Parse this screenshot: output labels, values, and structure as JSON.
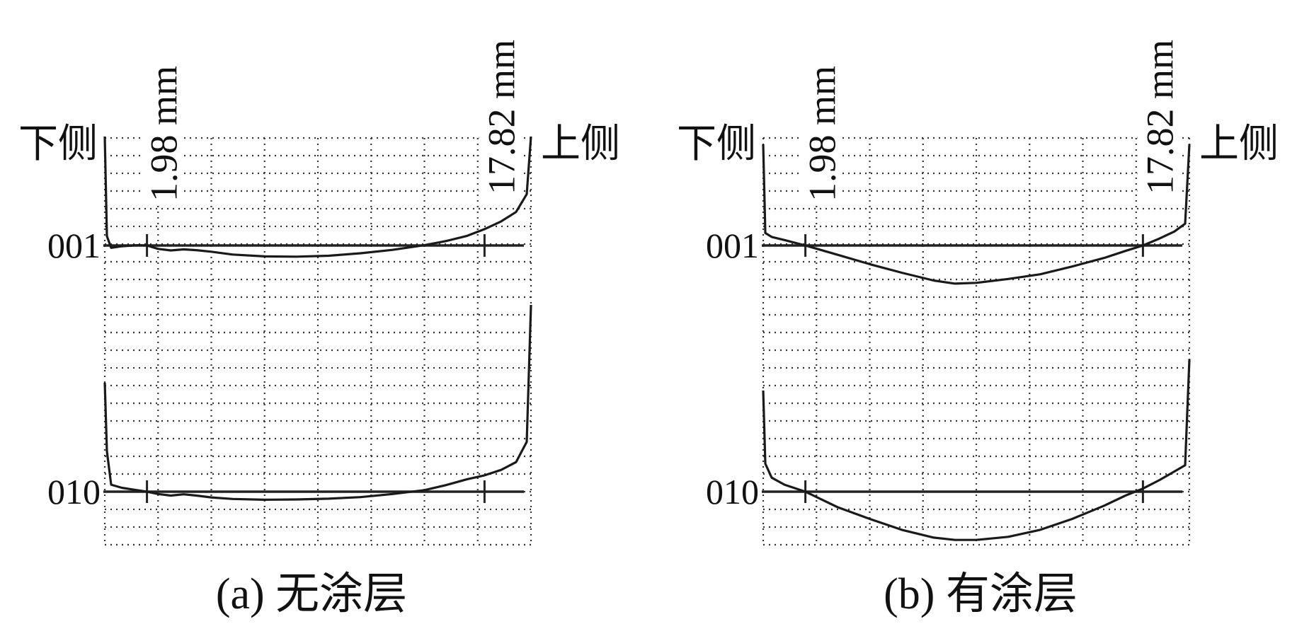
{
  "panels": [
    {
      "caption": "(a)  无涂层",
      "left_label": "下侧",
      "right_label": "上侧",
      "marker_left_label": "1.98 mm",
      "marker_right_label": "17.82 mm",
      "row_labels": [
        "001",
        "010"
      ]
    },
    {
      "caption": "(b)  有涂层",
      "left_label": "下侧",
      "right_label": "上侧",
      "marker_left_label": "1.98 mm",
      "marker_right_label": "17.82 mm",
      "row_labels": [
        "001",
        "010"
      ]
    }
  ],
  "chart_data": [
    {
      "type": "line",
      "title": "(a)  无涂层",
      "x_range_mm": [
        0,
        20
      ],
      "markers_mm": [
        1.98,
        17.82
      ],
      "grid": true,
      "series": [
        {
          "name": "001",
          "x": [
            0,
            0.1,
            0.3,
            0.8,
            1.5,
            1.98,
            2.5,
            3.1,
            3.7,
            4.3,
            5.0,
            6.0,
            7.5,
            9.0,
            10.5,
            12.0,
            13.5,
            15.0,
            16.0,
            17.0,
            17.82,
            18.6,
            19.3,
            19.8,
            20.0
          ],
          "y": [
            10,
            0.6,
            -0.15,
            -0.05,
            0.02,
            0,
            -0.22,
            -0.32,
            -0.25,
            -0.3,
            -0.4,
            -0.58,
            -0.7,
            -0.72,
            -0.66,
            -0.5,
            -0.28,
            0.02,
            0.28,
            0.62,
            1.05,
            1.55,
            2.15,
            3.3,
            7.0
          ]
        },
        {
          "name": "010",
          "x": [
            0,
            0.1,
            0.3,
            0.8,
            1.5,
            1.98,
            2.5,
            3.1,
            3.7,
            4.3,
            5.0,
            6.0,
            7.5,
            9.0,
            10.5,
            12.0,
            13.5,
            15.0,
            16.0,
            17.0,
            17.82,
            18.6,
            19.3,
            19.8,
            20.0
          ],
          "y": [
            7.0,
            2.6,
            0.45,
            0.25,
            0.1,
            0,
            -0.15,
            -0.25,
            -0.17,
            -0.25,
            -0.37,
            -0.47,
            -0.52,
            -0.5,
            -0.45,
            -0.35,
            -0.15,
            0.1,
            0.42,
            0.8,
            1.05,
            1.4,
            1.9,
            3.2,
            12.0
          ]
        }
      ]
    },
    {
      "type": "line",
      "title": "(b)  有涂层",
      "x_range_mm": [
        0,
        20
      ],
      "markers_mm": [
        1.98,
        17.82
      ],
      "grid": true,
      "series": [
        {
          "name": "001",
          "x": [
            0,
            0.1,
            0.4,
            1.0,
            1.98,
            3.5,
            5.0,
            6.5,
            8.0,
            9.0,
            10.0,
            11.5,
            13.0,
            14.5,
            16.0,
            17.0,
            17.82,
            18.6,
            19.3,
            19.8,
            20.0
          ],
          "y": [
            6.5,
            0.8,
            0.55,
            0.35,
            0,
            -0.6,
            -1.2,
            -1.75,
            -2.25,
            -2.45,
            -2.4,
            -2.15,
            -1.85,
            -1.35,
            -0.8,
            -0.35,
            0,
            0.45,
            0.9,
            1.4,
            6.5
          ]
        },
        {
          "name": "010",
          "x": [
            0,
            0.1,
            0.4,
            1.0,
            1.98,
            3.5,
            5.0,
            6.5,
            8.0,
            9.0,
            10.0,
            11.5,
            13.0,
            14.5,
            16.0,
            17.0,
            17.82,
            18.6,
            19.3,
            19.8,
            20.0
          ],
          "y": [
            6.5,
            1.8,
            0.9,
            0.45,
            0,
            -1.0,
            -1.75,
            -2.45,
            -2.95,
            -3.1,
            -3.1,
            -2.9,
            -2.45,
            -1.75,
            -0.9,
            -0.25,
            0.2,
            0.75,
            1.3,
            1.7,
            8.5
          ]
        }
      ]
    }
  ]
}
